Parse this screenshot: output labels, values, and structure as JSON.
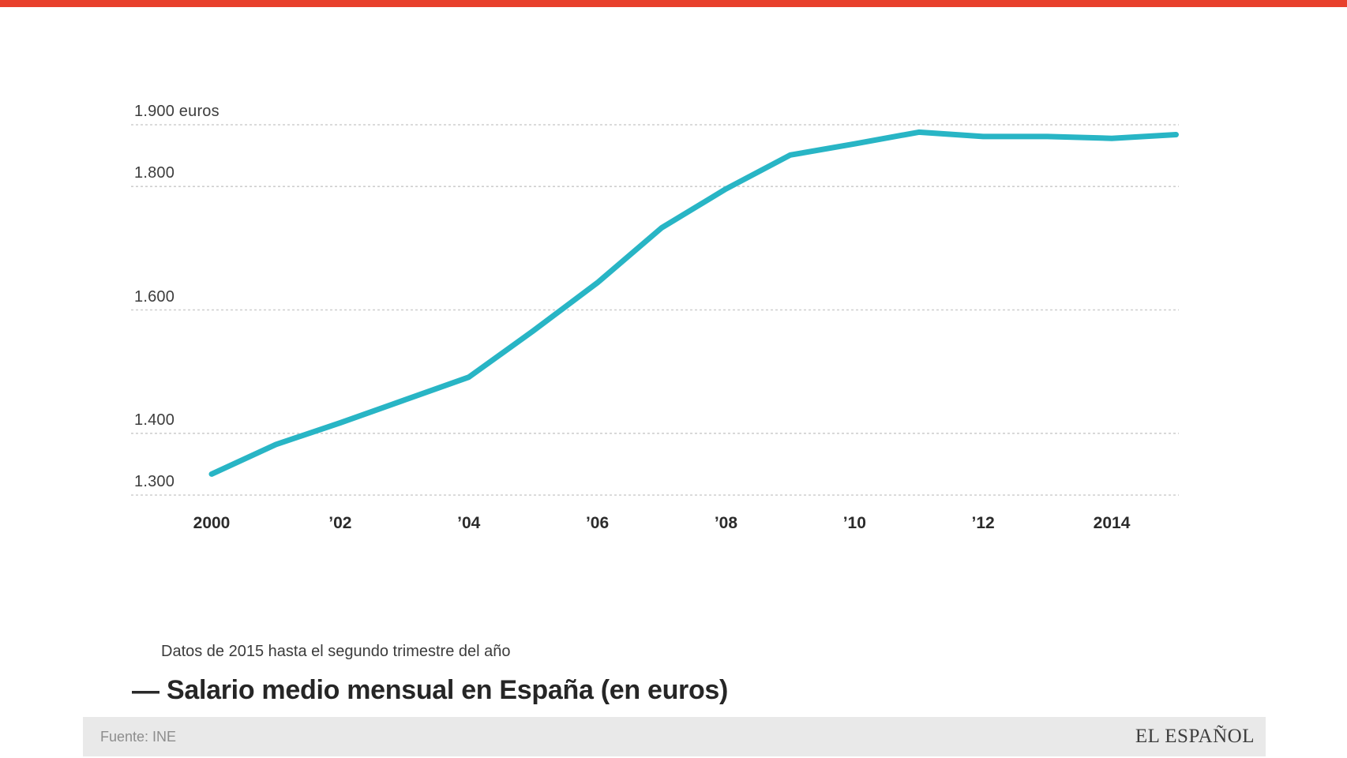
{
  "page": {
    "background": "#ffffff",
    "accent_bar_color": "#e8402c"
  },
  "chart_data": {
    "type": "line",
    "title": "Salario medio mensual en España (en euros)",
    "footnote": "Datos de 2015 hasta el segundo trimestre del año",
    "legend_dash": "—",
    "unit": "euros",
    "x": [
      2000,
      2001,
      2002,
      2003,
      2004,
      2005,
      2006,
      2007,
      2008,
      2009,
      2010,
      2011,
      2012,
      2013,
      2014,
      2015
    ],
    "values": [
      1334,
      1382,
      1417,
      1454,
      1491,
      1566,
      1644,
      1733,
      1796,
      1851,
      1869,
      1888,
      1881,
      1881,
      1878,
      1884
    ],
    "x_ticks": [
      {
        "year": 2000,
        "label": "2000"
      },
      {
        "year": 2002,
        "label": "’02"
      },
      {
        "year": 2004,
        "label": "’04"
      },
      {
        "year": 2006,
        "label": "’06"
      },
      {
        "year": 2008,
        "label": "’08"
      },
      {
        "year": 2010,
        "label": "’10"
      },
      {
        "year": 2012,
        "label": "’12"
      },
      {
        "year": 2014,
        "label": "2014"
      }
    ],
    "y_ticks": [
      {
        "value": 1900,
        "label": "1.900 euros"
      },
      {
        "value": 1800,
        "label": "1.800"
      },
      {
        "value": 1600,
        "label": "1.600"
      },
      {
        "value": 1400,
        "label": "1.400"
      },
      {
        "value": 1300,
        "label": "1.300"
      }
    ],
    "ylim": [
      1300,
      1900
    ],
    "grid": "horizontal-dashed",
    "grid_color": "#cfcfcf",
    "line_color": "#28b5c5",
    "legend_position": "bottom-left"
  },
  "footer": {
    "source": "Fuente: INE",
    "brand": "EL ESPAÑOL"
  }
}
